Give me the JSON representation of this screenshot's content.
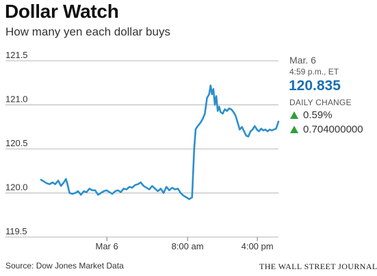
{
  "title": "Dollar Watch",
  "subtitle": "How many yen each dollar buys",
  "colors": {
    "line": "#2b8fcc",
    "value": "#1a6fb0",
    "up": "#2f9e3a",
    "grid": "#b5b5b5"
  },
  "info_panel": {
    "date": "Mar. 6",
    "time": "4:59 p.m., ET",
    "value": "120.835",
    "change_label": "DAILY CHANGE",
    "change_icon": "up-triangle-icon",
    "change_percent": "0.59%",
    "change_absolute": "0.704000000"
  },
  "footer": {
    "source": "Source: Dow Jones Market Data",
    "credit": "THE WALL STREET JOURNAL."
  },
  "chart_data": {
    "type": "line",
    "title": "Dollar Watch",
    "subtitle": "How many yen each dollar buys",
    "xlabel": "",
    "ylabel": "",
    "ylim": [
      119.5,
      121.5
    ],
    "yticks": [
      "121.5",
      "121.0",
      "120.5",
      "120.0",
      "119.5"
    ],
    "ytick_values": [
      121.5,
      121.0,
      120.5,
      120.0,
      119.5
    ],
    "xticks": [
      "Mar 6",
      "8:00 am",
      "4:00 pm"
    ],
    "xtick_positions": [
      0.277,
      0.617,
      0.911
    ],
    "x_domain": [
      0,
      1
    ],
    "grid": true,
    "legend": "none",
    "series": [
      {
        "x": [
          0.0,
          0.012,
          0.024,
          0.036,
          0.048,
          0.06,
          0.072,
          0.084,
          0.096,
          0.105,
          0.112,
          0.12,
          0.132,
          0.144,
          0.156,
          0.168,
          0.18,
          0.192,
          0.204,
          0.216,
          0.228,
          0.24,
          0.252,
          0.264,
          0.276,
          0.288,
          0.3,
          0.312,
          0.324,
          0.336,
          0.348,
          0.36,
          0.372,
          0.384,
          0.396,
          0.408,
          0.42,
          0.432,
          0.444,
          0.456,
          0.468,
          0.48,
          0.492,
          0.504,
          0.516,
          0.528,
          0.54,
          0.552,
          0.564,
          0.576,
          0.588,
          0.6,
          0.612,
          0.624,
          0.636,
          0.645,
          0.651,
          0.657,
          0.663,
          0.672,
          0.681,
          0.69,
          0.699,
          0.708,
          0.714,
          0.72,
          0.726,
          0.732,
          0.738,
          0.744,
          0.75,
          0.756,
          0.765,
          0.774,
          0.783,
          0.792,
          0.801,
          0.81,
          0.819,
          0.828,
          0.837,
          0.846,
          0.855,
          0.864,
          0.873,
          0.882,
          0.891,
          0.9,
          0.909,
          0.918,
          0.927,
          0.936,
          0.945,
          0.954,
          0.963,
          0.972,
          0.981,
          0.99,
          1.0
        ],
        "y": [
          120.15,
          120.13,
          120.11,
          120.1,
          120.12,
          120.1,
          120.14,
          120.08,
          120.12,
          120.16,
          120.09,
          120.0,
          119.99,
          120.0,
          120.02,
          119.98,
          120.02,
          120.01,
          120.05,
          120.03,
          120.03,
          119.98,
          120.0,
          120.02,
          120.03,
          120.01,
          119.99,
          120.02,
          120.03,
          120.01,
          120.05,
          120.04,
          120.07,
          120.06,
          120.09,
          120.1,
          120.12,
          120.08,
          120.06,
          120.04,
          120.08,
          120.05,
          120.02,
          120.05,
          120.0,
          120.07,
          120.03,
          120.06,
          120.04,
          120.05,
          120.0,
          119.97,
          119.95,
          119.93,
          119.95,
          120.5,
          120.72,
          120.75,
          120.77,
          120.8,
          120.84,
          120.9,
          121.08,
          121.12,
          121.22,
          121.12,
          121.18,
          121.0,
          121.1,
          120.93,
          120.98,
          120.92,
          120.9,
          120.95,
          120.93,
          120.96,
          120.95,
          120.92,
          120.88,
          120.8,
          120.72,
          120.75,
          120.7,
          120.65,
          120.64,
          120.7,
          120.72,
          120.76,
          120.72,
          120.7,
          120.73,
          120.71,
          120.72,
          120.7,
          120.72,
          120.71,
          120.72,
          120.73,
          120.81
        ]
      }
    ]
  }
}
